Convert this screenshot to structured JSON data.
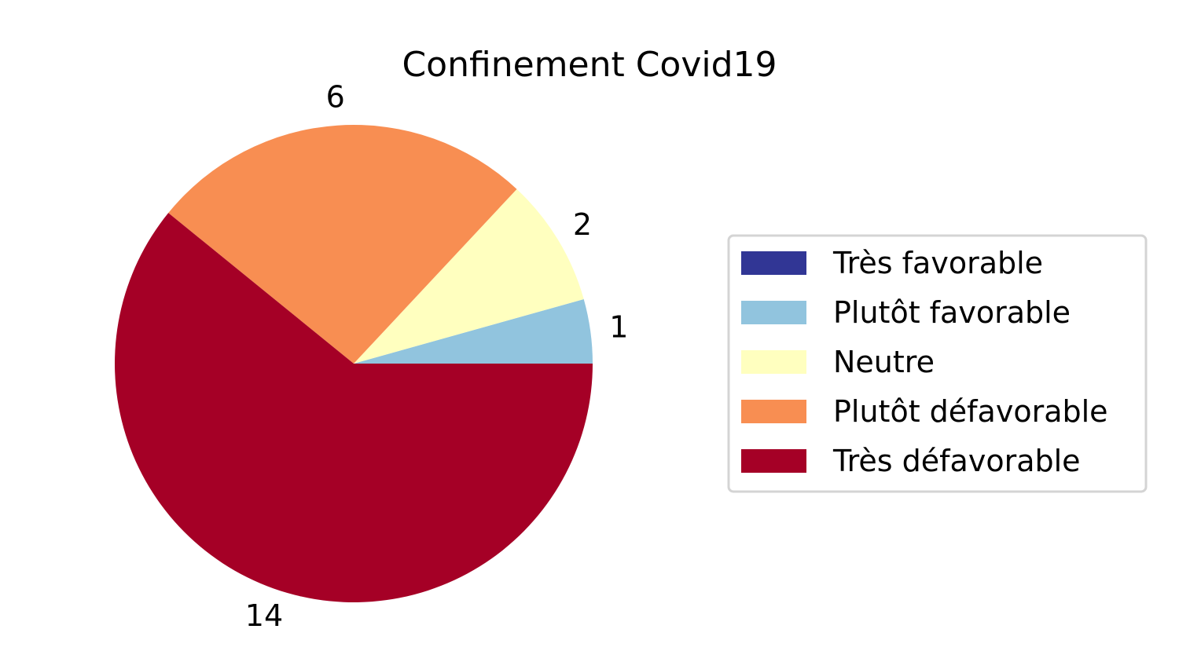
{
  "chart_data": {
    "type": "pie",
    "title": "Confinement Covid19",
    "categories": [
      "Très favorable",
      "Plutôt favorable",
      "Neutre",
      "Plutôt défavorable",
      "Très défavorable"
    ],
    "values": [
      0,
      1,
      2,
      6,
      14
    ],
    "value_labels": [
      "",
      "1",
      "2",
      "6",
      "14"
    ],
    "colors": [
      "#313695",
      "#91c4de",
      "#ffffbf",
      "#f88e52",
      "#a50026"
    ],
    "start_angle_deg": 0,
    "direction": "counterclockwise",
    "legend": {
      "position": "right",
      "entries": [
        "Très favorable",
        "Plutôt favorable",
        "Neutre",
        "Plutôt défavorable",
        "Très défavorable"
      ]
    }
  }
}
